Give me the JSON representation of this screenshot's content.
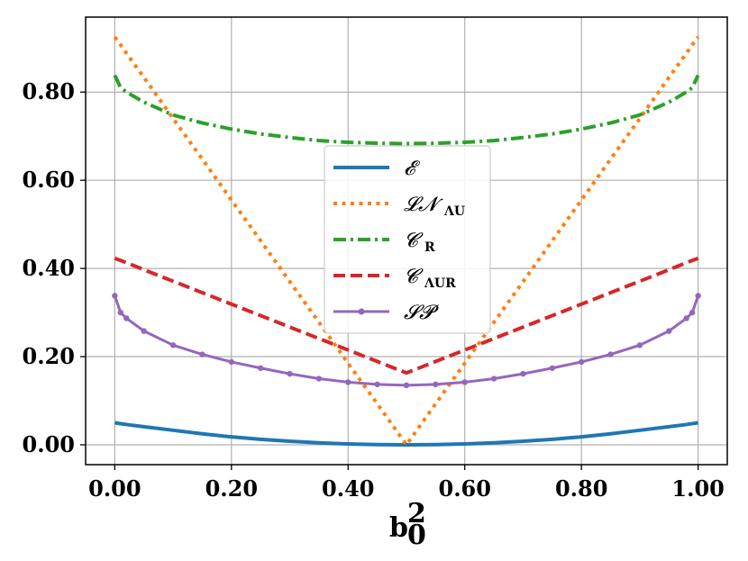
{
  "chart_data": {
    "type": "line",
    "title": "",
    "xlabel": {
      "main": "b",
      "sub": "0",
      "sup": "2"
    },
    "ylabel": "",
    "xlim": [
      -0.05,
      1.05
    ],
    "ylim": [
      -0.045,
      0.97
    ],
    "grid": true,
    "legend_position": "center",
    "xticks": [
      0.0,
      0.2,
      0.4,
      0.6,
      0.8,
      1.0
    ],
    "xtick_labels": [
      "0.00",
      "0.20",
      "0.40",
      "0.60",
      "0.80",
      "1.00"
    ],
    "yticks": [
      0.0,
      0.2,
      0.4,
      0.6,
      0.8
    ],
    "ytick_labels": [
      "0.00",
      "0.20",
      "0.40",
      "0.60",
      "0.80"
    ],
    "x": [
      0.0,
      0.01,
      0.02,
      0.05,
      0.1,
      0.15,
      0.2,
      0.25,
      0.3,
      0.35,
      0.4,
      0.45,
      0.5,
      0.55,
      0.6,
      0.65,
      0.7,
      0.75,
      0.8,
      0.85,
      0.9,
      0.95,
      0.98,
      0.99,
      1.0
    ],
    "series": [
      {
        "name": "E",
        "legend_main": "𝓔",
        "legend_sub": "",
        "color": "#1f77b4",
        "style": "solid",
        "values": [
          0.05,
          0.048,
          0.046,
          0.041,
          0.033,
          0.025,
          0.018,
          0.0125,
          0.008,
          0.0045,
          0.002,
          0.0005,
          0.0,
          0.0005,
          0.002,
          0.0045,
          0.008,
          0.0125,
          0.018,
          0.025,
          0.033,
          0.041,
          0.046,
          0.048,
          0.05
        ]
      },
      {
        "name": "LN_ΛU",
        "legend_main": "𝓛𝓝",
        "legend_sub": "ΛU",
        "color": "#ff7f0e",
        "style": "dotted",
        "values": [
          0.925,
          0.907,
          0.888,
          0.833,
          0.74,
          0.648,
          0.555,
          0.463,
          0.37,
          0.278,
          0.185,
          0.093,
          0.0,
          0.093,
          0.185,
          0.278,
          0.37,
          0.463,
          0.555,
          0.648,
          0.74,
          0.833,
          0.888,
          0.907,
          0.925
        ]
      },
      {
        "name": "C_R",
        "legend_main": "𝓒",
        "legend_sub": "R",
        "color": "#2ca02c",
        "style": "dashdot",
        "values": [
          0.838,
          0.81,
          0.8,
          0.777,
          0.748,
          0.73,
          0.716,
          0.705,
          0.697,
          0.69,
          0.686,
          0.684,
          0.683,
          0.684,
          0.686,
          0.69,
          0.697,
          0.705,
          0.716,
          0.73,
          0.748,
          0.777,
          0.8,
          0.81,
          0.838
        ]
      },
      {
        "name": "C_ΛUR",
        "legend_main": "𝓒",
        "legend_sub": "ΛUR",
        "color": "#d62728",
        "style": "dashed",
        "values": [
          0.423,
          0.418,
          0.413,
          0.397,
          0.371,
          0.345,
          0.319,
          0.293,
          0.267,
          0.241,
          0.215,
          0.189,
          0.163,
          0.189,
          0.215,
          0.241,
          0.267,
          0.293,
          0.319,
          0.345,
          0.371,
          0.397,
          0.413,
          0.418,
          0.423
        ]
      },
      {
        "name": "SP",
        "legend_main": "𝓢𝓟",
        "legend_sub": "",
        "color": "#9467bd",
        "style": "solid-markers",
        "values": [
          0.338,
          0.3,
          0.287,
          0.258,
          0.226,
          0.205,
          0.188,
          0.174,
          0.161,
          0.15,
          0.142,
          0.137,
          0.135,
          0.137,
          0.142,
          0.15,
          0.161,
          0.174,
          0.188,
          0.205,
          0.226,
          0.258,
          0.287,
          0.3,
          0.338
        ]
      }
    ]
  }
}
